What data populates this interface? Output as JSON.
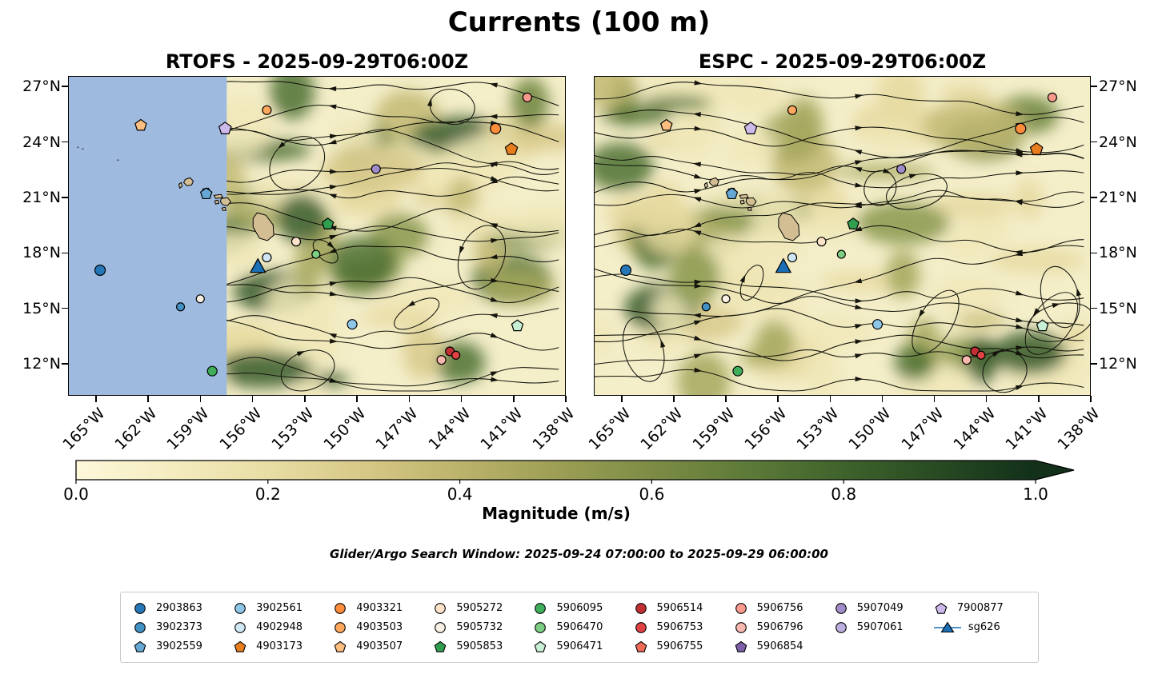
{
  "title": "Currents (100 m)",
  "panels": [
    {
      "title": "RTOFS - 2025-09-29T06:00Z"
    },
    {
      "title": "ESPC - 2025-09-29T06:00Z"
    }
  ],
  "axes": {
    "lat_ticks": [
      "27°N",
      "24°N",
      "21°N",
      "18°N",
      "15°N",
      "12°N"
    ],
    "lon_ticks": [
      "165°W",
      "162°W",
      "159°W",
      "156°W",
      "153°W",
      "150°W",
      "147°W",
      "144°W",
      "141°W",
      "138°W"
    ]
  },
  "colorbar": {
    "label": "Magnitude (m/s)",
    "ticks": [
      "0.0",
      "0.2",
      "0.4",
      "0.6",
      "0.8",
      "1.0"
    ],
    "gradient": [
      "#fdf8da",
      "#f4ecc0",
      "#e8dda4",
      "#d6c886",
      "#bcb36b",
      "#9d9f55",
      "#7d8c45",
      "#5d7a38",
      "#3f632c",
      "#274a22",
      "#12301a"
    ]
  },
  "search_window": "Glider/Argo Search Window: 2025-09-24 07:00:00 to 2025-09-29 06:00:00",
  "map_style": {
    "ocean_base": "#f4eec9",
    "nodata_color": "#9fbadf",
    "island_color": "#d3bd92",
    "stream_color": "#14140c",
    "magnitude_palette": [
      "#f0e7b9",
      "#e6d9a0",
      "#d8c98b",
      "#c2b873",
      "#a5a75e",
      "#88964c",
      "#6b833d",
      "#4e7031",
      "#35592a"
    ]
  },
  "floats": [
    {
      "id": "2903863",
      "shape": "circle",
      "color": "#2578b5"
    },
    {
      "id": "3902561",
      "shape": "circle",
      "color": "#8ec6e8"
    },
    {
      "id": "4903321",
      "shape": "circle",
      "color": "#fd8c3b"
    },
    {
      "id": "5905272",
      "shape": "circle",
      "color": "#fde3c8"
    },
    {
      "id": "5906095",
      "shape": "circle",
      "color": "#41ae5c"
    },
    {
      "id": "5906514",
      "shape": "circle",
      "color": "#c22f33"
    },
    {
      "id": "5906756",
      "shape": "circle",
      "color": "#fa9a8d"
    },
    {
      "id": "5907049",
      "shape": "circle",
      "color": "#a08cc8"
    },
    {
      "id": "7900877",
      "shape": "pentagon",
      "color": "#cdb9ea"
    },
    {
      "id": "3902373",
      "shape": "circle",
      "color": "#4292c6"
    },
    {
      "id": "4902948",
      "shape": "circle",
      "color": "#cfe6f5"
    },
    {
      "id": "4903503",
      "shape": "circle",
      "color": "#fda85c"
    },
    {
      "id": "5905732",
      "shape": "circle",
      "color": "#f7f0e3"
    },
    {
      "id": "5906470",
      "shape": "circle",
      "color": "#7dcd82"
    },
    {
      "id": "5906753",
      "shape": "circle",
      "color": "#e04243"
    },
    {
      "id": "5906796",
      "shape": "circle",
      "color": "#f8b8af"
    },
    {
      "id": "5907061",
      "shape": "circle",
      "color": "#bcaede"
    },
    {
      "id": "sg626",
      "shape": "triangle-line",
      "color": "#1b6fb5"
    },
    {
      "id": "3902559",
      "shape": "pentagon",
      "color": "#66a8d4"
    },
    {
      "id": "4903173",
      "shape": "pentagon",
      "color": "#e87d1e"
    },
    {
      "id": "4903507",
      "shape": "pentagon",
      "color": "#fdbf7f"
    },
    {
      "id": "5905853",
      "shape": "pentagon",
      "color": "#2f9e4f"
    },
    {
      "id": "5906471",
      "shape": "pentagon",
      "color": "#c8f0d5"
    },
    {
      "id": "5906755",
      "shape": "pentagon",
      "color": "#ef6a57"
    },
    {
      "id": "5906854",
      "shape": "pentagon",
      "color": "#7c5fa8"
    }
  ],
  "map_markers": [
    {
      "id": "2903863",
      "x": 6.3,
      "y": 60.8,
      "size": 13
    },
    {
      "id": "4903507",
      "x": 14.5,
      "y": 15.3,
      "size": 12
    },
    {
      "id": "7900877",
      "x": 31.5,
      "y": 16.3,
      "size": 13
    },
    {
      "id": "4903503",
      "x": 39.9,
      "y": 10.5,
      "size": 11
    },
    {
      "id": "5906756",
      "x": 92.4,
      "y": 6.5,
      "size": 11
    },
    {
      "id": "4903321",
      "x": 86.0,
      "y": 16.3,
      "size": 13
    },
    {
      "id": "4903173",
      "x": 89.2,
      "y": 22.8,
      "size": 13
    },
    {
      "id": "5907049",
      "x": 61.9,
      "y": 29.0,
      "size": 11
    },
    {
      "id": "3902559",
      "x": 27.7,
      "y": 36.8,
      "size": 12
    },
    {
      "id": "5905853",
      "x": 52.2,
      "y": 46.3,
      "size": 12
    },
    {
      "id": "5905272",
      "x": 45.8,
      "y": 51.8,
      "size": 11
    },
    {
      "id": "5906470",
      "x": 49.8,
      "y": 55.8,
      "size": 10
    },
    {
      "id": "4902948",
      "x": 39.9,
      "y": 56.8,
      "size": 11
    },
    {
      "id": "5905732",
      "x": 26.5,
      "y": 69.8,
      "size": 10
    },
    {
      "id": "sg626",
      "x": 38.1,
      "y": 59.8,
      "size": 16
    },
    {
      "id": "3902373",
      "x": 22.5,
      "y": 72.3,
      "size": 10
    },
    {
      "id": "3902561",
      "x": 57.1,
      "y": 77.8,
      "size": 12
    },
    {
      "id": "5906471",
      "x": 90.4,
      "y": 78.3,
      "size": 12
    },
    {
      "id": "5906514",
      "x": 76.8,
      "y": 86.3,
      "size": 11
    },
    {
      "id": "5906753",
      "x": 78.0,
      "y": 87.5,
      "size": 10
    },
    {
      "id": "5906796",
      "x": 75.1,
      "y": 89.0,
      "size": 11
    },
    {
      "id": "5906095",
      "x": 28.9,
      "y": 92.5,
      "size": 12
    }
  ],
  "chart_data": {
    "type": "streamplot-map",
    "title": "Currents (100 m)",
    "subtitle_panels": [
      "RTOFS - 2025-09-29T06:00Z",
      "ESPC - 2025-09-29T06:00Z"
    ],
    "x_tick_labels": [
      "165°W",
      "162°W",
      "159°W",
      "156°W",
      "153°W",
      "150°W",
      "147°W",
      "144°W",
      "141°W",
      "138°W"
    ],
    "y_tick_labels": [
      "27°N",
      "24°N",
      "21°N",
      "18°N",
      "15°N",
      "12°N"
    ],
    "lon_range_deg_w": [
      166.8,
      137.8
    ],
    "lat_range_deg_n": [
      10.6,
      27.5
    ],
    "colorbar": {
      "label": "Magnitude (m/s)",
      "range": [
        0.0,
        1.0
      ],
      "tick_values": [
        0.0,
        0.2,
        0.4,
        0.6,
        0.8,
        1.0
      ],
      "extend": "max"
    },
    "rtofs_no_data_note": "RTOFS panel shows a no-data region (light blue) west of about 157.5°W",
    "glider_argo_search_window": "2025-09-24 07:00:00 to 2025-09-29 06:00:00",
    "float_positions_approx": [
      {
        "id": "2903863",
        "lat_n": 17.1,
        "lon_w": 164.8
      },
      {
        "id": "4903507",
        "lat_n": 24.9,
        "lon_w": 162.5
      },
      {
        "id": "7900877",
        "lat_n": 24.7,
        "lon_w": 157.6
      },
      {
        "id": "4903503",
        "lat_n": 25.8,
        "lon_w": 155.2
      },
      {
        "id": "5906756",
        "lat_n": 26.4,
        "lon_w": 140.2
      },
      {
        "id": "4903321",
        "lat_n": 24.7,
        "lon_w": 142.0
      },
      {
        "id": "4903173",
        "lat_n": 23.6,
        "lon_w": 141.1
      },
      {
        "id": "5907049",
        "lat_n": 22.6,
        "lon_w": 148.9
      },
      {
        "id": "3902559",
        "lat_n": 21.2,
        "lon_w": 158.7
      },
      {
        "id": "5905853",
        "lat_n": 19.6,
        "lon_w": 151.7
      },
      {
        "id": "5905272",
        "lat_n": 18.6,
        "lon_w": 153.5
      },
      {
        "id": "5906470",
        "lat_n": 17.9,
        "lon_w": 152.4
      },
      {
        "id": "4902948",
        "lat_n": 17.7,
        "lon_w": 155.2
      },
      {
        "id": "5905732",
        "lat_n": 15.5,
        "lon_w": 159.0
      },
      {
        "id": "sg626",
        "lat_n": 17.2,
        "lon_w": 155.7
      },
      {
        "id": "3902373",
        "lat_n": 15.1,
        "lon_w": 160.2
      },
      {
        "id": "3902561",
        "lat_n": 14.1,
        "lon_w": 150.3
      },
      {
        "id": "5906471",
        "lat_n": 14.0,
        "lon_w": 140.7
      },
      {
        "id": "5906514",
        "lat_n": 12.6,
        "lon_w": 144.6
      },
      {
        "id": "5906753",
        "lat_n": 12.4,
        "lon_w": 144.3
      },
      {
        "id": "5906796",
        "lat_n": 12.2,
        "lon_w": 145.1
      },
      {
        "id": "5906095",
        "lat_n": 11.6,
        "lon_w": 158.3
      }
    ]
  }
}
